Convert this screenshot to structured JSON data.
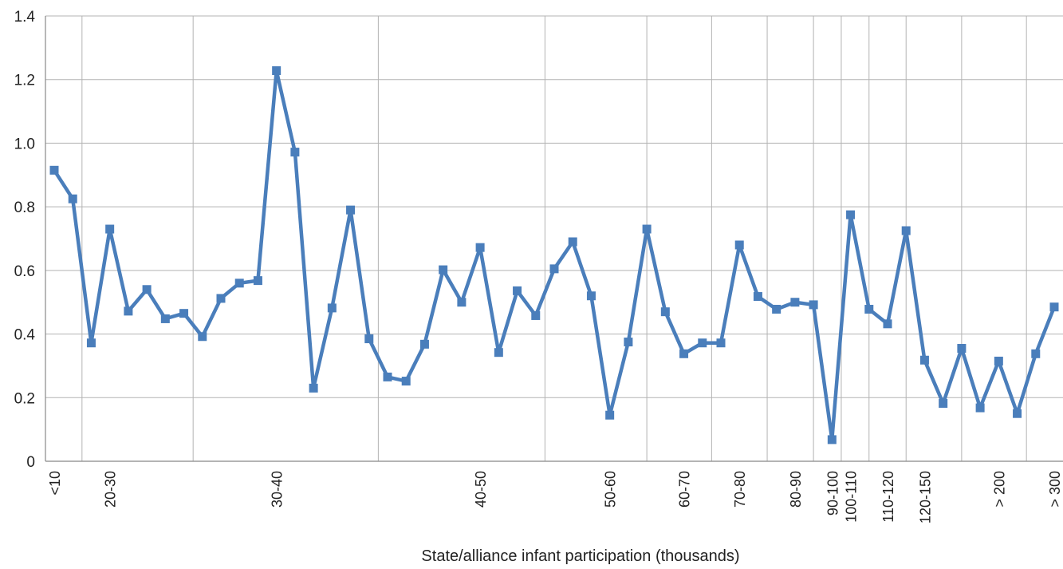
{
  "chart_data": {
    "type": "line",
    "title": "",
    "xlabel": "State/alliance infant participation (thousands)",
    "ylabel": "",
    "ylim": [
      0,
      1.4
    ],
    "yticks": [
      "0",
      "0.2",
      "0.4",
      "0.6",
      "0.8",
      "1.0",
      "1.2",
      "1.4"
    ],
    "grid": true,
    "legend": "none",
    "colors": {
      "line": "#4a7ebb",
      "grid": "#b3b3b3",
      "axis": "#888888"
    },
    "categories_labels": [
      {
        "label": "<10",
        "index": 0
      },
      {
        "label": "20-30",
        "index": 3
      },
      {
        "label": "30-40",
        "index": 12
      },
      {
        "label": "40-50",
        "index": 23
      },
      {
        "label": "50-60",
        "index": 30
      },
      {
        "label": "60-70",
        "index": 34
      },
      {
        "label": "70-80",
        "index": 37
      },
      {
        "label": "80-90",
        "index": 40
      },
      {
        "label": "90-100",
        "index": 42
      },
      {
        "label": "100-110",
        "index": 43
      },
      {
        "label": "110-120",
        "index": 45
      },
      {
        "label": "120-150",
        "index": 47
      },
      {
        "label": "> 200",
        "index": 51
      },
      {
        "label": "> 300",
        "index": 54
      }
    ],
    "series": [
      {
        "values": [
          0.915,
          0.825,
          0.372,
          0.73,
          0.472,
          0.54,
          0.448,
          0.465,
          0.392,
          0.512,
          0.56,
          0.568,
          1.228,
          0.972,
          0.23,
          0.482,
          0.79,
          0.385,
          0.265,
          0.252,
          0.368,
          0.602,
          0.5,
          0.672,
          0.342,
          0.536,
          0.458,
          0.605,
          0.69,
          0.52,
          0.145,
          0.375,
          0.73,
          0.47,
          0.338,
          0.372,
          0.372,
          0.68,
          0.518,
          0.478,
          0.5,
          0.492,
          0.068,
          0.775,
          0.478,
          0.432,
          0.725,
          0.318,
          0.182,
          0.355,
          0.168,
          0.315,
          0.15,
          0.338,
          0.485
        ]
      }
    ]
  }
}
